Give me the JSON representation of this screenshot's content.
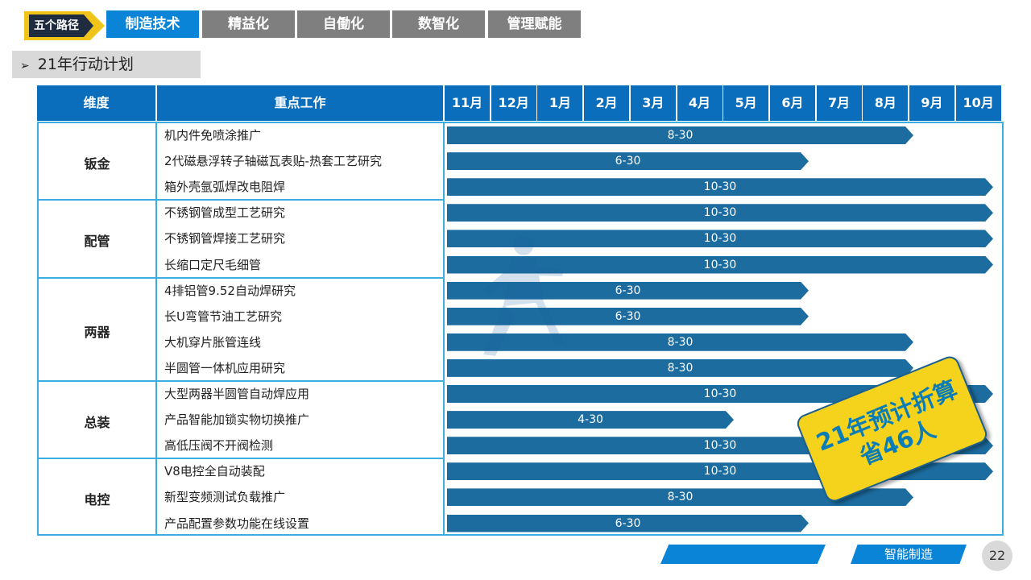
{
  "nav": {
    "tag": "五个路径",
    "tabs": [
      {
        "label": "制造技术",
        "active": true
      },
      {
        "label": "精益化",
        "active": false
      },
      {
        "label": "自働化",
        "active": false
      },
      {
        "label": "数智化",
        "active": false
      },
      {
        "label": "管理赋能",
        "active": false
      }
    ]
  },
  "section_title": "21年行动计划",
  "table": {
    "header_dimension": "维度",
    "header_work": "重点工作",
    "months": [
      "11月",
      "12月",
      "1月",
      "2月",
      "3月",
      "4月",
      "5月",
      "6月",
      "7月",
      "8月",
      "9月",
      "10月"
    ],
    "groups": [
      {
        "name": "钣金",
        "tasks": [
          {
            "name": "机内件免喷涂推广",
            "deadline": "8-30"
          },
          {
            "name": "2代磁悬浮转子轴磁瓦表贴-热套工艺研究",
            "deadline": "6-30"
          },
          {
            "name": "箱外壳氩弧焊改电阻焊",
            "deadline": "10-30"
          }
        ]
      },
      {
        "name": "配管",
        "tasks": [
          {
            "name": "不锈钢管成型工艺研究",
            "deadline": "10-30"
          },
          {
            "name": "不锈钢管焊接工艺研究",
            "deadline": "10-30"
          },
          {
            "name": "长缩口定尺毛细管",
            "deadline": "10-30"
          }
        ]
      },
      {
        "name": "两器",
        "tasks": [
          {
            "name": "4排铝管9.52自动焊研究",
            "deadline": "6-30"
          },
          {
            "name": "长U弯管节油工艺研究",
            "deadline": "6-30"
          },
          {
            "name": "大机穿片胀管连线",
            "deadline": "8-30"
          },
          {
            "name": "半圆管一体机应用研究",
            "deadline": "8-30"
          }
        ]
      },
      {
        "name": "总装",
        "tasks": [
          {
            "name": "大型两器半圆管自动焊应用",
            "deadline": "10-30"
          },
          {
            "name": "产品智能加锁实物切换推广",
            "deadline": "4-30"
          },
          {
            "name": "高低压阀不开阀检测",
            "deadline": "10-30"
          }
        ]
      },
      {
        "name": "电控",
        "tasks": [
          {
            "name": "V8电控全自动装配",
            "deadline": "10-30"
          },
          {
            "name": "新型变频测试负载推广",
            "deadline": "8-30"
          },
          {
            "name": "产品配置参数功能在线设置",
            "deadline": "6-30"
          }
        ]
      }
    ]
  },
  "stamp": {
    "line1": "21年预计折算",
    "line2": "省46人"
  },
  "footer": {
    "label": "智能制造",
    "page": "22"
  },
  "colors": {
    "accent": "#0a84d6",
    "header": "#0a6ebd",
    "bar": "#1c6ca0",
    "stamp": "#f5d21c",
    "tag": "#f0c419"
  }
}
